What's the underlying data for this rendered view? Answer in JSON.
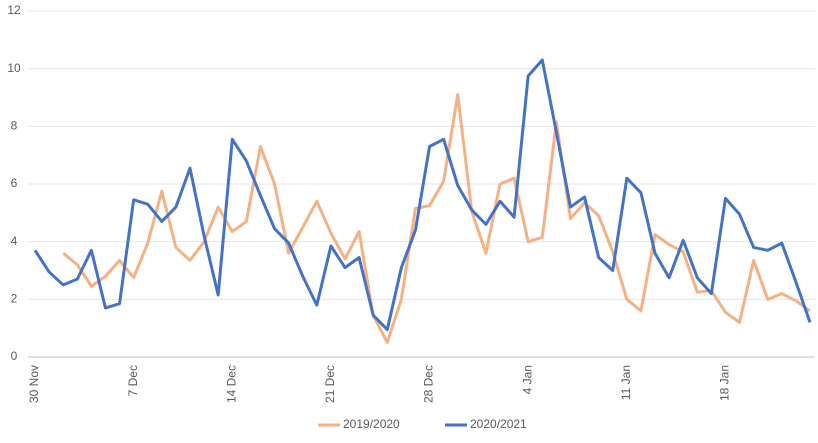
{
  "chart_data": {
    "type": "line",
    "categories": [
      "30 Nov",
      null,
      null,
      null,
      null,
      null,
      null,
      "7 Dec",
      null,
      null,
      null,
      null,
      null,
      null,
      "14 Dec",
      null,
      null,
      null,
      null,
      null,
      null,
      "21 Dec",
      null,
      null,
      null,
      null,
      null,
      null,
      "28 Dec",
      null,
      null,
      null,
      null,
      null,
      null,
      "4 Jan",
      null,
      null,
      null,
      null,
      null,
      null,
      "11 Jan",
      null,
      null,
      null,
      null,
      null,
      null,
      "18 Jan",
      null,
      null,
      null,
      null,
      null,
      null
    ],
    "series": [
      {
        "name": "2019/2020",
        "color": "#f4b183",
        "values": [
          null,
          null,
          3.6,
          3.2,
          2.45,
          2.8,
          3.35,
          2.75,
          3.95,
          5.75,
          3.8,
          3.35,
          4.0,
          5.2,
          4.35,
          4.7,
          7.3,
          6.0,
          3.6,
          4.5,
          5.4,
          4.3,
          3.4,
          4.35,
          1.45,
          0.5,
          2.0,
          5.15,
          5.25,
          6.1,
          9.1,
          5.05,
          3.6,
          6.0,
          6.2,
          4.0,
          4.15,
          8.15,
          4.8,
          5.35,
          4.9,
          3.65,
          2.0,
          1.6,
          4.25,
          3.9,
          3.65,
          2.25,
          2.3,
          1.55,
          1.2,
          3.35,
          2.0,
          2.2,
          1.95,
          1.6
        ]
      },
      {
        "name": "2020/2021",
        "color": "#4472c4",
        "values": [
          3.7,
          2.95,
          2.5,
          2.7,
          3.7,
          1.7,
          1.85,
          5.45,
          5.3,
          4.7,
          5.2,
          6.55,
          4.2,
          2.15,
          7.55,
          6.8,
          5.6,
          4.45,
          3.95,
          2.8,
          1.8,
          3.85,
          3.1,
          3.45,
          1.45,
          0.95,
          3.1,
          4.4,
          7.3,
          7.55,
          5.95,
          5.1,
          4.6,
          5.4,
          4.85,
          9.75,
          10.3,
          7.8,
          5.2,
          5.55,
          3.45,
          3.0,
          6.2,
          5.7,
          3.6,
          2.75,
          4.05,
          2.75,
          2.2,
          5.5,
          4.95,
          3.8,
          3.7,
          3.95,
          2.6,
          1.2
        ]
      }
    ],
    "ylim": [
      0,
      12
    ],
    "yticks": [
      0,
      2,
      4,
      6,
      8,
      10,
      12
    ],
    "grid": true
  }
}
